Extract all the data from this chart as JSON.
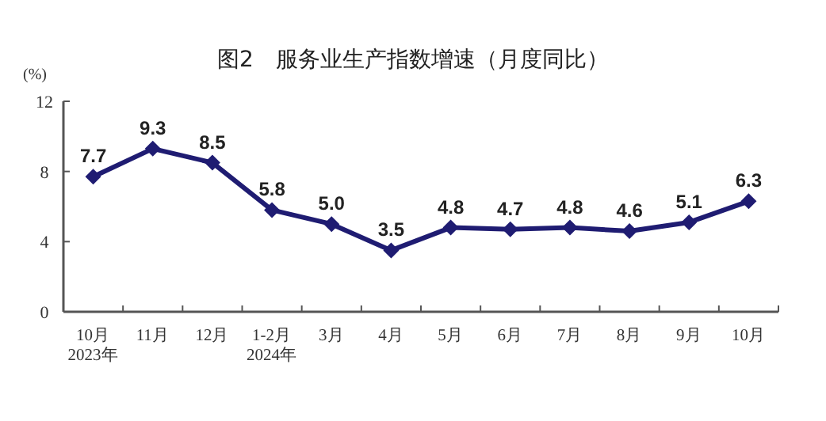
{
  "chart_data": {
    "type": "line",
    "title": "图2　服务业生产指数增速（月度同比）",
    "ylabel": "(%)",
    "categories": [
      "10月\n2023年",
      "11月",
      "12月",
      "1-2月\n2024年",
      "3月",
      "4月",
      "5月",
      "6月",
      "7月",
      "8月",
      "9月",
      "10月"
    ],
    "series": [
      {
        "color": "#1f1c72",
        "values": [
          7.7,
          9.3,
          8.5,
          5.8,
          5.0,
          3.5,
          4.8,
          4.7,
          4.8,
          4.6,
          5.1,
          6.3
        ],
        "value_labels": [
          "7.7",
          "9.3",
          "8.5",
          "5.8",
          "5.0",
          "3.5",
          "4.8",
          "4.7",
          "4.8",
          "4.6",
          "5.1",
          "6.3"
        ]
      }
    ],
    "ylim": [
      0,
      12
    ],
    "yticks": [
      0,
      4,
      8,
      12
    ],
    "grid": false,
    "marker": "diamond",
    "line_style": "solid"
  }
}
